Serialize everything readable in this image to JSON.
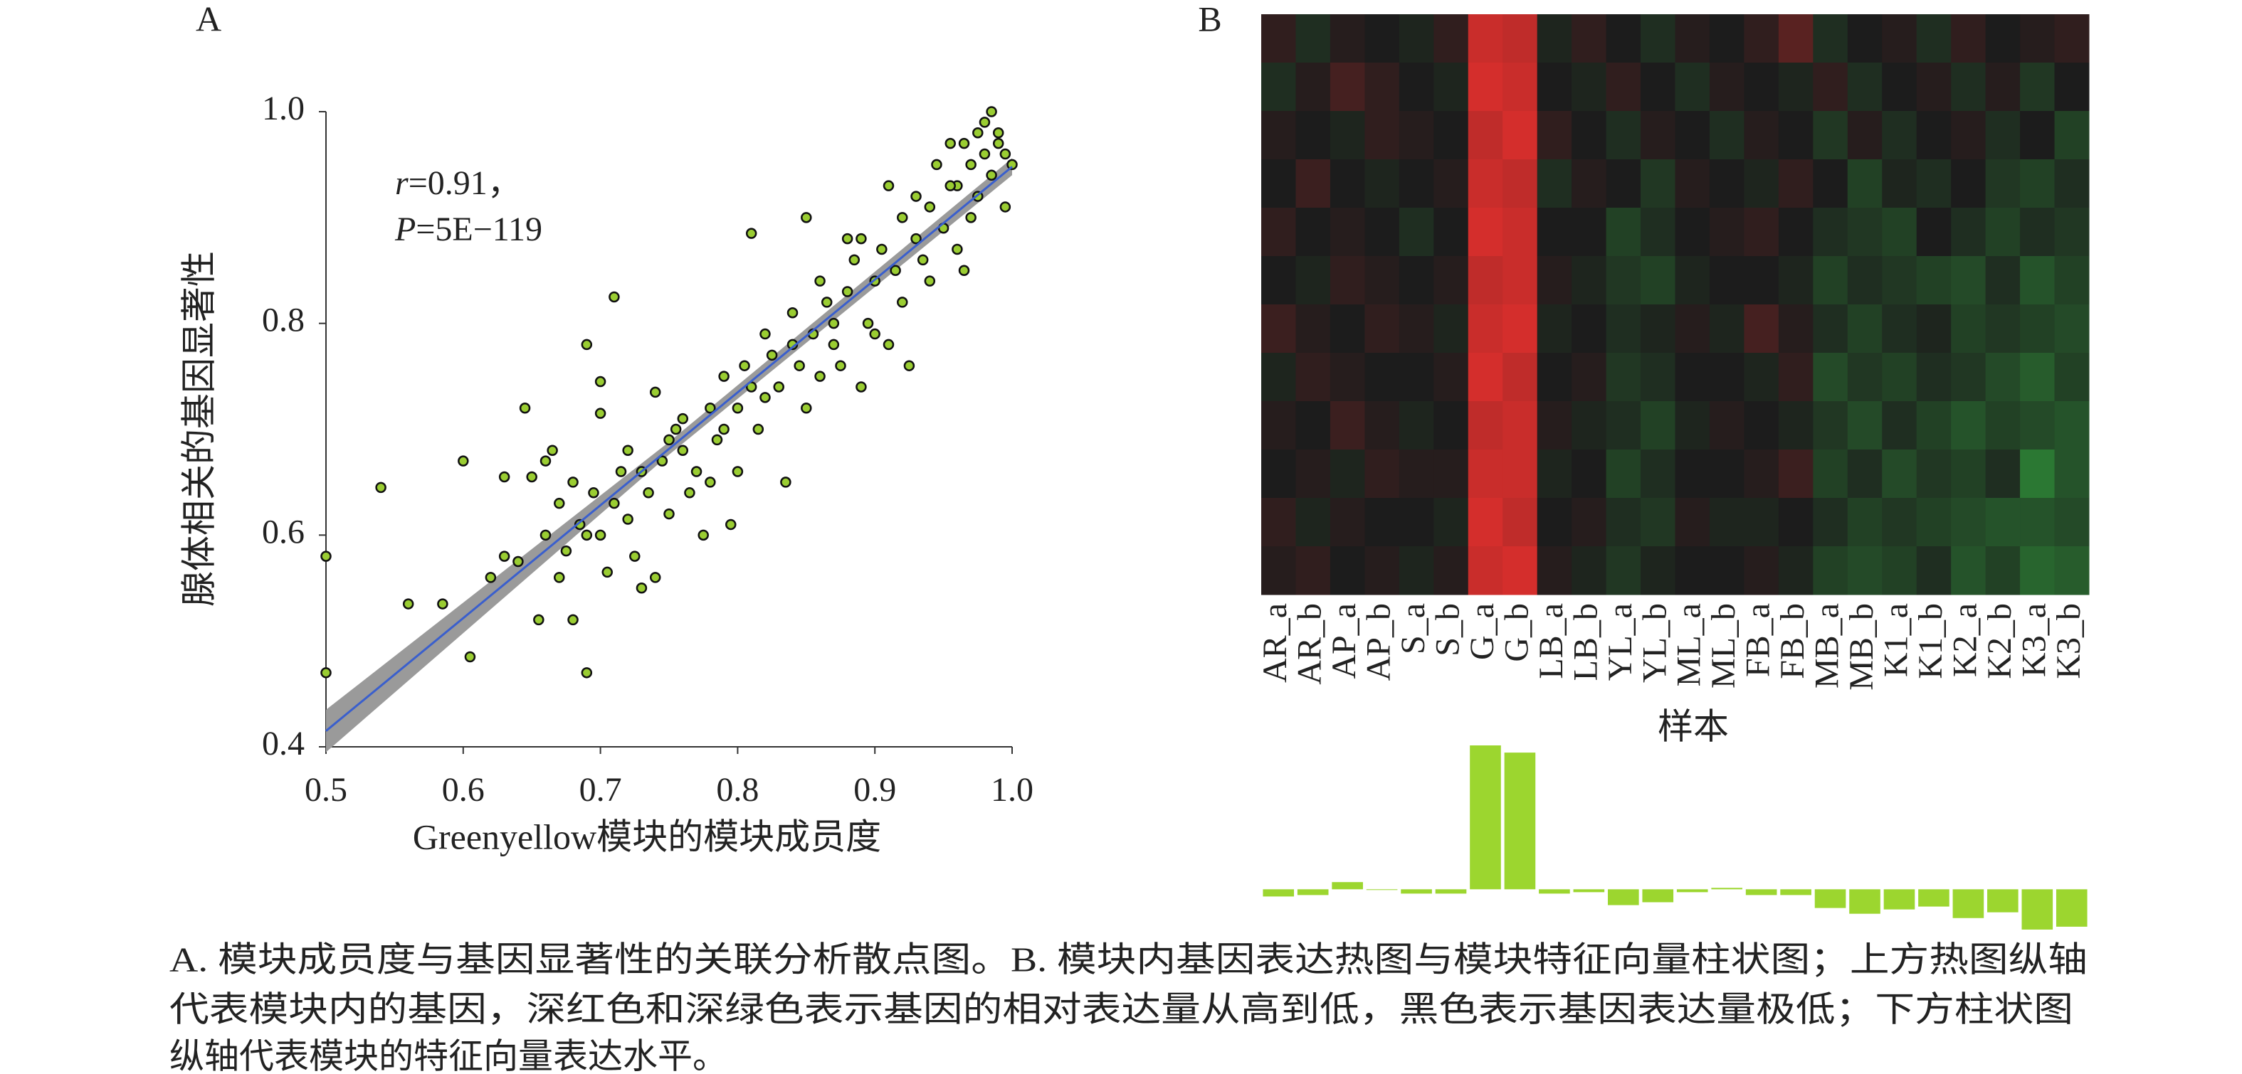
{
  "chart_data": [
    {
      "type": "scatter",
      "panel": "A",
      "xlabel": "Greenyellow模块的模块成员度",
      "ylabel": "腺体相关的基因显著性",
      "annotation": {
        "r_var": "r",
        "r_text": "=0.91，",
        "p_var": "P",
        "p_text": "=5E−119"
      },
      "xlim": [
        0.5,
        1.0
      ],
      "ylim": [
        0.4,
        1.0
      ],
      "xticks": [
        0.5,
        0.6,
        0.7,
        0.8,
        0.9,
        {
          "value": 1,
          "label": "1.0"
        }
      ],
      "yticks": [
        0.4,
        0.6,
        0.8,
        {
          "value": 1,
          "label": "1.0"
        }
      ],
      "series": [
        {
          "color": "#9acd32",
          "x": [
            0.5,
            0.5,
            0.54,
            0.56,
            0.585,
            0.6,
            0.605,
            0.62,
            0.63,
            0.64,
            0.645,
            0.65,
            0.655,
            0.66,
            0.66,
            0.665,
            0.67,
            0.675,
            0.68,
            0.68,
            0.685,
            0.69,
            0.69,
            0.695,
            0.7,
            0.7,
            0.7,
            0.705,
            0.71,
            0.71,
            0.715,
            0.72,
            0.725,
            0.73,
            0.73,
            0.735,
            0.74,
            0.74,
            0.745,
            0.75,
            0.75,
            0.755,
            0.76,
            0.765,
            0.77,
            0.775,
            0.78,
            0.78,
            0.785,
            0.79,
            0.795,
            0.8,
            0.8,
            0.805,
            0.81,
            0.81,
            0.815,
            0.82,
            0.825,
            0.83,
            0.835,
            0.84,
            0.845,
            0.85,
            0.85,
            0.855,
            0.86,
            0.865,
            0.87,
            0.87,
            0.875,
            0.88,
            0.885,
            0.89,
            0.89,
            0.895,
            0.9,
            0.9,
            0.905,
            0.91,
            0.91,
            0.915,
            0.92,
            0.92,
            0.925,
            0.93,
            0.935,
            0.94,
            0.94,
            0.945,
            0.95,
            0.955,
            0.96,
            0.96,
            0.965,
            0.97,
            0.97,
            0.975,
            0.98,
            0.98,
            0.985,
            0.985,
            0.99,
            0.99,
            0.995,
            0.995,
            1.0,
            0.975,
            0.965,
            0.955,
            0.93,
            0.88,
            0.86,
            0.84,
            0.82,
            0.79,
            0.76,
            0.72,
            0.69,
            0.67,
            0.63
          ],
          "y": [
            0.58,
            0.47,
            0.645,
            0.535,
            0.535,
            0.67,
            0.485,
            0.56,
            0.655,
            0.575,
            0.72,
            0.655,
            0.52,
            0.67,
            0.6,
            0.68,
            0.56,
            0.585,
            0.65,
            0.52,
            0.61,
            0.78,
            0.47,
            0.64,
            0.745,
            0.715,
            0.6,
            0.565,
            0.825,
            0.63,
            0.66,
            0.615,
            0.58,
            0.66,
            0.55,
            0.64,
            0.735,
            0.56,
            0.67,
            0.69,
            0.62,
            0.7,
            0.68,
            0.64,
            0.66,
            0.6,
            0.72,
            0.65,
            0.69,
            0.7,
            0.61,
            0.66,
            0.72,
            0.76,
            0.74,
            0.885,
            0.7,
            0.79,
            0.77,
            0.74,
            0.65,
            0.81,
            0.76,
            0.9,
            0.72,
            0.79,
            0.75,
            0.82,
            0.8,
            0.78,
            0.76,
            0.83,
            0.86,
            0.74,
            0.88,
            0.8,
            0.84,
            0.79,
            0.87,
            0.78,
            0.93,
            0.85,
            0.82,
            0.9,
            0.76,
            0.88,
            0.86,
            0.91,
            0.84,
            0.95,
            0.89,
            0.97,
            0.87,
            0.93,
            0.85,
            0.9,
            0.95,
            0.92,
            0.96,
            0.99,
            0.94,
            1.0,
            0.97,
            0.98,
            0.91,
            0.96,
            0.95,
            0.98,
            0.97,
            0.93,
            0.92,
            0.88,
            0.84,
            0.78,
            0.73,
            0.75,
            0.71,
            0.68,
            0.6,
            0.63,
            0.58
          ]
        }
      ],
      "fit": {
        "color": "#3a5fcd",
        "x": [
          0.5,
          1.0
        ],
        "y": [
          0.415,
          0.948
        ]
      },
      "band": {
        "color": "#9a9a9a",
        "x": [
          0.5,
          0.75,
          1.0
        ],
        "lower": [
          0.395,
          0.676,
          0.94
        ],
        "upper": [
          0.435,
          0.688,
          0.956
        ]
      }
    },
    {
      "type": "heatmap",
      "panel": "B",
      "xlabel": "样本",
      "categories": [
        "AR_a",
        "AR_b",
        "AP_a",
        "AP_b",
        "S_a",
        "S_b",
        "G_a",
        "G_b",
        "LB_a",
        "LB_b",
        "YL_a",
        "YL_b",
        "ML_a",
        "ML_b",
        "FB_a",
        "FB_b",
        "MB_a",
        "MB_b",
        "K1_a",
        "K1_b",
        "K2_a",
        "K2_b",
        "K3_a",
        "K3_b"
      ],
      "colorlim": [
        -1,
        1
      ],
      "colors": {
        "low": "#3ad34a",
        "mid": "#1c1c1c",
        "high": "#e8302e"
      },
      "values": [
        [
          0.1,
          -0.1,
          0.05,
          0,
          -0.05,
          0.1,
          0.85,
          0.8,
          -0.05,
          0.1,
          0,
          -0.1,
          0.05,
          0,
          0.1,
          0.3,
          -0.1,
          0,
          0.05,
          -0.1,
          0.1,
          0,
          0.05,
          0.1
        ],
        [
          -0.1,
          0.05,
          0.2,
          0.1,
          0,
          -0.05,
          0.9,
          0.85,
          0,
          -0.05,
          0.1,
          0,
          -0.1,
          0.05,
          0,
          -0.05,
          0.1,
          -0.1,
          0,
          0.05,
          -0.1,
          0.05,
          -0.15,
          0
        ],
        [
          0.05,
          0,
          -0.05,
          0.1,
          0.05,
          0,
          0.8,
          0.9,
          0.1,
          0,
          -0.1,
          0.05,
          0,
          -0.1,
          0.05,
          0,
          -0.15,
          0.05,
          -0.1,
          0,
          0.05,
          -0.1,
          0,
          -0.2
        ],
        [
          0,
          0.15,
          0,
          -0.05,
          0,
          0.05,
          0.85,
          0.8,
          -0.1,
          0.05,
          0,
          -0.15,
          0.05,
          0,
          -0.05,
          0.1,
          0,
          -0.2,
          -0.05,
          -0.1,
          0,
          -0.15,
          -0.2,
          -0.1
        ],
        [
          0.1,
          0,
          0.05,
          0,
          -0.1,
          0,
          0.9,
          0.85,
          0,
          0,
          -0.2,
          -0.1,
          0,
          0.05,
          0.1,
          0,
          -0.1,
          -0.15,
          -0.2,
          0,
          -0.1,
          -0.2,
          -0.1,
          -0.15
        ],
        [
          0,
          -0.05,
          0.1,
          0.05,
          0,
          0.05,
          0.8,
          0.85,
          0.05,
          -0.05,
          -0.15,
          -0.2,
          -0.05,
          0,
          0,
          -0.05,
          -0.2,
          -0.1,
          -0.15,
          -0.2,
          -0.25,
          -0.1,
          -0.3,
          -0.2
        ],
        [
          0.15,
          0.05,
          0,
          0.1,
          0.05,
          -0.05,
          0.85,
          0.9,
          -0.05,
          0,
          -0.1,
          -0.05,
          0.05,
          -0.05,
          0.2,
          0.05,
          -0.1,
          -0.2,
          -0.1,
          -0.05,
          -0.2,
          -0.15,
          -0.2,
          -0.25
        ],
        [
          -0.05,
          0.1,
          0.05,
          0,
          0,
          0.05,
          0.9,
          0.8,
          0,
          0.05,
          -0.15,
          -0.1,
          0,
          0,
          -0.05,
          0.1,
          -0.25,
          -0.15,
          -0.2,
          -0.1,
          -0.15,
          -0.25,
          -0.35,
          -0.2
        ],
        [
          0.05,
          0,
          0.15,
          0.05,
          -0.05,
          0,
          0.8,
          0.85,
          0.05,
          -0.05,
          -0.1,
          -0.2,
          -0.05,
          0.05,
          0,
          -0.05,
          -0.15,
          -0.25,
          -0.1,
          -0.2,
          -0.3,
          -0.2,
          -0.25,
          -0.3
        ],
        [
          0,
          0.05,
          -0.05,
          0.1,
          0.05,
          0.05,
          0.85,
          0.85,
          -0.05,
          0,
          -0.2,
          -0.1,
          0,
          0,
          0.05,
          0.15,
          -0.2,
          -0.1,
          -0.25,
          -0.15,
          -0.2,
          -0.1,
          -0.5,
          -0.3
        ],
        [
          0.1,
          -0.05,
          0.05,
          0,
          0,
          -0.05,
          0.9,
          0.8,
          0,
          0.05,
          -0.1,
          -0.15,
          0.05,
          -0.05,
          -0.05,
          0,
          -0.1,
          -0.2,
          -0.15,
          -0.2,
          -0.25,
          -0.3,
          -0.3,
          -0.25
        ],
        [
          0.05,
          0.1,
          0,
          0.05,
          -0.05,
          0.05,
          0.85,
          0.9,
          0.05,
          -0.05,
          -0.15,
          -0.05,
          0,
          0,
          0.05,
          -0.05,
          -0.2,
          -0.25,
          -0.2,
          -0.1,
          -0.3,
          -0.2,
          -0.4,
          -0.35
        ]
      ]
    },
    {
      "type": "bar",
      "color": "#9cd62f",
      "ylim": [
        -0.15,
        0.5
      ],
      "values": [
        -0.025,
        -0.02,
        0.025,
        0,
        -0.015,
        -0.015,
        0.5,
        0.475,
        -0.015,
        -0.01,
        -0.055,
        -0.045,
        -0.01,
        0.005,
        -0.02,
        -0.02,
        -0.065,
        -0.085,
        -0.07,
        -0.06,
        -0.1,
        -0.08,
        -0.14,
        -0.13
      ]
    }
  ],
  "caption": {
    "lines": [
      "A. 模块成员度与基因显著性的关联分析散点图。B. 模块内基因表达热图与模块特征向量柱状图；上方热图纵轴",
      "代表模块内的基因，深红色和深绿色表示基因的相对表达量从高到低，黑色表示基因表达量极低；下方柱状图",
      "纵轴代表模块的特征向量表达水平。"
    ]
  }
}
